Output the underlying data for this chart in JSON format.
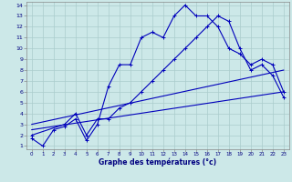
{
  "title": "Graphe des températures (°c)",
  "bg_color": "#cce8e8",
  "grid_color": "#aacccc",
  "line_color": "#0000bb",
  "xlim": [
    -0.5,
    23.5
  ],
  "ylim": [
    0.7,
    14.3
  ],
  "xtick_vals": [
    0,
    1,
    2,
    3,
    4,
    5,
    6,
    7,
    8,
    9,
    10,
    11,
    12,
    13,
    14,
    15,
    16,
    17,
    18,
    19,
    20,
    21,
    22,
    23
  ],
  "ytick_vals": [
    1,
    2,
    3,
    4,
    5,
    6,
    7,
    8,
    9,
    10,
    11,
    12,
    13,
    14
  ],
  "series1_x": [
    0,
    1,
    2,
    3,
    4,
    5,
    6,
    7,
    8,
    9,
    10,
    11,
    12,
    13,
    14,
    15,
    16,
    17,
    18,
    19,
    20,
    21,
    22,
    23
  ],
  "series1_y": [
    1.7,
    1.0,
    2.5,
    2.8,
    3.5,
    1.5,
    3.0,
    6.5,
    8.5,
    8.5,
    11.0,
    11.5,
    11.0,
    13.0,
    14.0,
    13.0,
    13.0,
    12.0,
    10.0,
    9.5,
    8.5,
    9.0,
    8.5,
    6.0
  ],
  "series2_x": [
    0,
    3,
    4,
    5,
    6,
    7,
    8,
    9,
    10,
    11,
    12,
    13,
    14,
    15,
    16,
    17,
    18,
    19,
    20,
    21,
    22,
    23
  ],
  "series2_y": [
    2.0,
    3.0,
    4.0,
    2.0,
    3.5,
    3.5,
    4.5,
    5.0,
    6.0,
    7.0,
    8.0,
    9.0,
    10.0,
    11.0,
    12.0,
    13.0,
    12.5,
    10.0,
    8.0,
    8.5,
    7.5,
    5.5
  ],
  "line3_x": [
    0,
    23
  ],
  "line3_y": [
    2.5,
    6.0
  ],
  "line4_x": [
    0,
    23
  ],
  "line4_y": [
    3.0,
    8.0
  ]
}
